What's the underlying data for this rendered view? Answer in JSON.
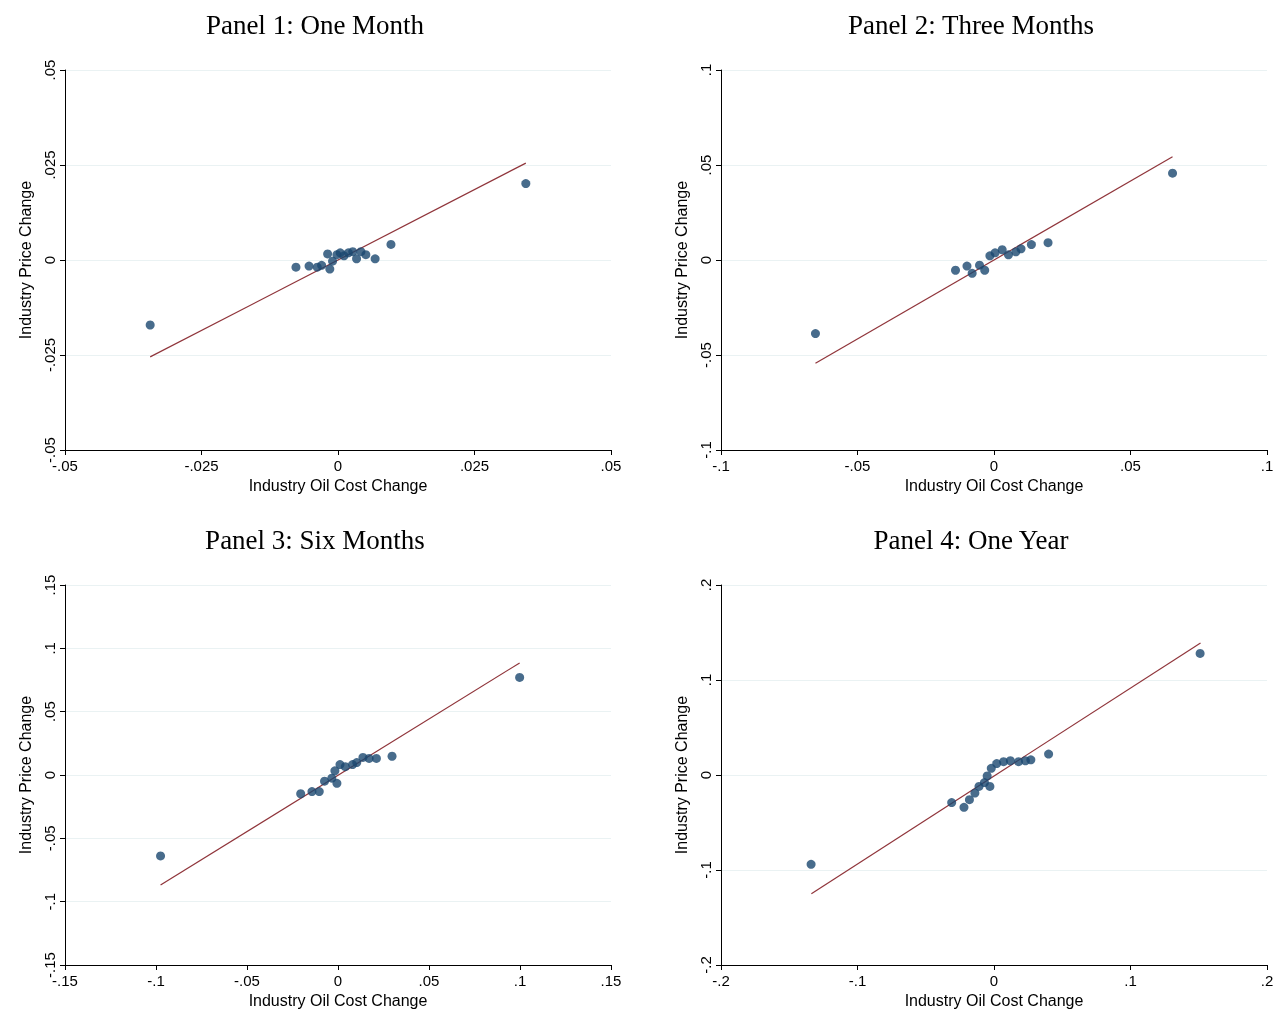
{
  "chart_data": [
    {
      "type": "scatter",
      "title": "Panel 1: One Month",
      "xlabel": "Industry Oil Cost Change",
      "ylabel": "Industry Price Change",
      "marker": "circle",
      "grid": "y",
      "xlim": [
        -0.05,
        0.05
      ],
      "xticks": [
        {
          "value": -0.05,
          "label": "-.05"
        },
        {
          "value": -0.025,
          "label": "-.025"
        },
        {
          "value": 0,
          "label": "0"
        },
        {
          "value": 0.025,
          "label": ".025"
        },
        {
          "value": 0.05,
          "label": ".05"
        }
      ],
      "ylim": [
        -0.05,
        0.05
      ],
      "yticks": [
        {
          "value": -0.05,
          "label": "-.05"
        },
        {
          "value": -0.025,
          "label": "-.025"
        },
        {
          "value": 0,
          "label": "0"
        },
        {
          "value": 0.025,
          "label": ".025"
        },
        {
          "value": 0.05,
          "label": ".05"
        }
      ],
      "series": [
        {
          "color": "#1a476f",
          "x": [
            -0.0344,
            0.0344,
            0.0097,
            0.0068,
            -0.0077,
            -0.0053,
            -0.0038,
            -0.003,
            -0.0019,
            -0.0015,
            -0.001,
            -0.0002,
            0.0004,
            0.0011,
            0.0019,
            0.0027,
            0.0034,
            0.0042,
            0.0051
          ],
          "values": [
            -0.0171,
            0.0201,
            0.0041,
            0.0003,
            -0.0019,
            -0.0016,
            -0.0019,
            -0.0014,
            0.0016,
            -0.0024,
            -0.0003,
            0.0014,
            0.0019,
            0.0011,
            0.0019,
            0.0022,
            0.0003,
            0.0022,
            0.0014
          ]
        },
        {
          "type": "line",
          "color": "#90353b",
          "marker": "none",
          "x": [
            -0.0344,
            0.0344
          ],
          "values": [
            -0.0255,
            0.0255
          ]
        }
      ]
    },
    {
      "type": "scatter",
      "title": "Panel 2: Three Months",
      "xlabel": "Industry Oil Cost Change",
      "ylabel": "Industry Price Change",
      "marker": "circle",
      "grid": "y",
      "xlim": [
        -0.1,
        0.1
      ],
      "xticks": [
        {
          "value": -0.1,
          "label": "-.1"
        },
        {
          "value": -0.05,
          "label": "-.05"
        },
        {
          "value": 0,
          "label": "0"
        },
        {
          "value": 0.05,
          "label": ".05"
        },
        {
          "value": 0.1,
          "label": ".1"
        }
      ],
      "ylim": [
        -0.1,
        0.1
      ],
      "yticks": [
        {
          "value": -0.1,
          "label": "-.1"
        },
        {
          "value": -0.05,
          "label": "-.05"
        },
        {
          "value": 0,
          "label": "0"
        },
        {
          "value": 0.05,
          "label": ".05"
        },
        {
          "value": 0.1,
          "label": ".1"
        }
      ],
      "series": [
        {
          "color": "#1a476f",
          "x": [
            -0.0654,
            0.0654,
            0.0198,
            0.0137,
            -0.0141,
            -0.0099,
            -0.008,
            -0.0053,
            -0.0034,
            -0.0015,
            0.0004,
            0.003,
            0.0053,
            0.008,
            0.0099
          ],
          "values": [
            -0.0387,
            0.0457,
            0.0091,
            0.0081,
            -0.0054,
            -0.0032,
            -0.007,
            -0.0027,
            -0.0054,
            0.0022,
            0.0038,
            0.0054,
            0.0027,
            0.0043,
            0.0059
          ]
        },
        {
          "type": "line",
          "color": "#90353b",
          "marker": "none",
          "x": [
            -0.0654,
            0.0654
          ],
          "values": [
            -0.0543,
            0.0543
          ]
        }
      ]
    },
    {
      "type": "scatter",
      "title": "Panel 3: Six Months",
      "xlabel": "Industry Oil Cost Change",
      "ylabel": "Industry Price Change",
      "marker": "circle",
      "grid": "y",
      "xlim": [
        -0.15,
        0.15
      ],
      "xticks": [
        {
          "value": -0.15,
          "label": "-.15"
        },
        {
          "value": -0.1,
          "label": "-.1"
        },
        {
          "value": -0.05,
          "label": "-.05"
        },
        {
          "value": 0,
          "label": "0"
        },
        {
          "value": 0.05,
          "label": ".05"
        },
        {
          "value": 0.1,
          "label": ".1"
        },
        {
          "value": 0.15,
          "label": ".15"
        }
      ],
      "ylim": [
        -0.15,
        0.15
      ],
      "yticks": [
        {
          "value": -0.15,
          "label": "-.15"
        },
        {
          "value": -0.1,
          "label": "-.1"
        },
        {
          "value": -0.05,
          "label": "-.05"
        },
        {
          "value": 0,
          "label": "0"
        },
        {
          "value": 0.05,
          "label": ".05"
        },
        {
          "value": 0.1,
          "label": ".1"
        },
        {
          "value": 0.15,
          "label": ".15"
        }
      ],
      "series": [
        {
          "color": "#1a476f",
          "x": [
            -0.0975,
            0.0998,
            0.0297,
            0.0211,
            -0.0205,
            -0.0143,
            -0.0103,
            -0.0074,
            -0.0034,
            -0.0017,
            0.0011,
            0.004,
            0.008,
            0.0103,
            0.0137,
            0.0171,
            -0.0006
          ],
          "values": [
            -0.0639,
            0.077,
            0.0148,
            0.0131,
            -0.0148,
            -0.0131,
            -0.0131,
            -0.0049,
            -0.0025,
            0.0033,
            0.0082,
            0.0066,
            0.0082,
            0.0098,
            0.0139,
            0.0131,
            -0.0066
          ]
        },
        {
          "type": "line",
          "color": "#90353b",
          "marker": "none",
          "x": [
            -0.0975,
            0.0998
          ],
          "values": [
            -0.0869,
            0.0885
          ]
        }
      ]
    },
    {
      "type": "scatter",
      "title": "Panel 4: One Year",
      "xlabel": "Industry Oil Cost Change",
      "ylabel": "Industry Price Change",
      "marker": "circle",
      "grid": "y",
      "xlim": [
        -0.2,
        0.2
      ],
      "xticks": [
        {
          "value": -0.2,
          "label": "-.2"
        },
        {
          "value": -0.1,
          "label": "-.1"
        },
        {
          "value": 0,
          "label": "0"
        },
        {
          "value": 0.1,
          "label": ".1"
        },
        {
          "value": 0.2,
          "label": ".2"
        }
      ],
      "ylim": [
        -0.2,
        0.2
      ],
      "yticks": [
        {
          "value": -0.2,
          "label": "-.2"
        },
        {
          "value": -0.1,
          "label": "-.1"
        },
        {
          "value": 0,
          "label": "0"
        },
        {
          "value": 0.1,
          "label": ".1"
        },
        {
          "value": 0.2,
          "label": ".2"
        }
      ],
      "series": [
        {
          "color": "#1a476f",
          "x": [
            -0.134,
            0.151,
            0.04,
            0.027,
            -0.031,
            -0.022,
            -0.018,
            -0.014,
            -0.011,
            -0.007,
            -0.003,
            -0.002,
            0.002,
            0.007,
            0.012,
            0.018,
            0.023,
            -0.005
          ],
          "values": [
            -0.094,
            0.128,
            0.022,
            0.016,
            -0.029,
            -0.034,
            -0.026,
            -0.019,
            -0.012,
            -0.008,
            -0.012,
            0.007,
            0.012,
            0.014,
            0.015,
            0.014,
            0.015,
            -0.001
          ]
        },
        {
          "type": "line",
          "color": "#90353b",
          "marker": "none",
          "x": [
            -0.1338,
            0.1513
          ],
          "values": [
            -0.125,
            0.139
          ]
        }
      ]
    }
  ]
}
